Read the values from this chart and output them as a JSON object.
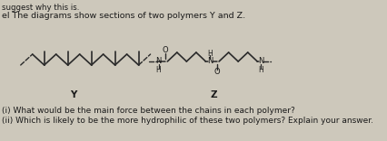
{
  "header_text": "suggest why this is.",
  "title_text": "el The diagrams show sections of two polymers Y and Z.",
  "footer_line1": "(i) What would be the main force between the chains in each polymer?",
  "footer_line2": "(ii) Which is likely to be the more hydrophilic of these two polymers? Explain your answer.",
  "label_Y": "Y",
  "label_Z": "Z",
  "bg_color": "#cdc8bb",
  "text_color": "#1a1a1a",
  "bond_color": "#2a2a2a",
  "font_size_header": 6.2,
  "font_size_title": 6.8,
  "font_size_label": 7.5,
  "font_size_footer": 6.5,
  "font_size_atom": 6.0
}
